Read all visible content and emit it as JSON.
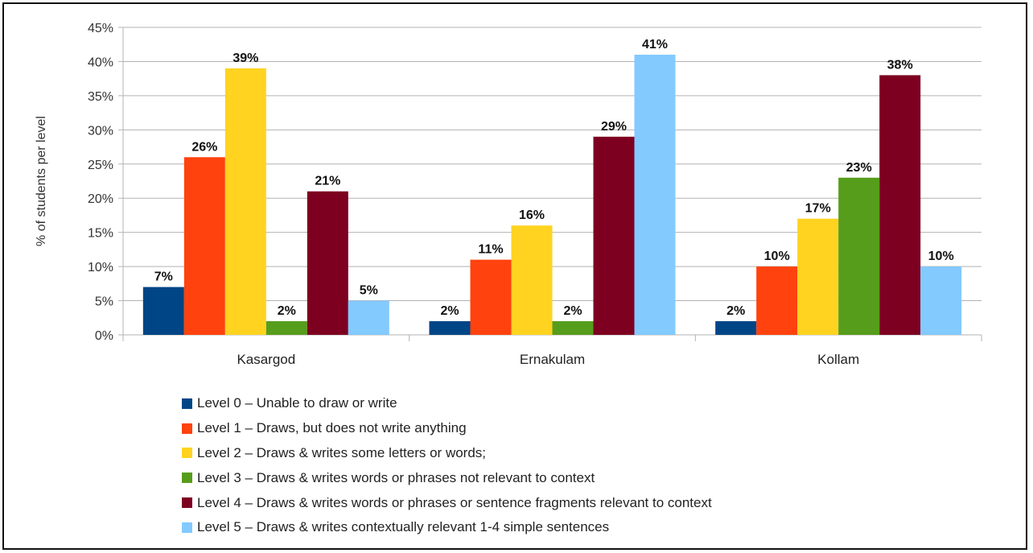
{
  "chart_data": {
    "type": "bar",
    "ylabel": "% of students per level",
    "ylim": [
      0,
      45
    ],
    "yticks": [
      "0%",
      "5%",
      "10%",
      "15%",
      "20%",
      "25%",
      "30%",
      "35%",
      "40%",
      "45%"
    ],
    "grid": true,
    "legend_position": "bottom",
    "categories": [
      "Kasargod",
      "Ernakulam",
      "Kollam"
    ],
    "series": [
      {
        "name": "Level 0 – Unable to draw or write",
        "color": "#004586",
        "values": [
          7,
          2,
          2
        ],
        "labels": [
          "7%",
          "2%",
          "2%"
        ]
      },
      {
        "name": "Level 1 – Draws, but does not write anything",
        "color": "#ff420e",
        "values": [
          26,
          11,
          10
        ],
        "labels": [
          "26%",
          "11%",
          "10%"
        ]
      },
      {
        "name": "Level 2 – Draws & writes some letters or words;",
        "color": "#ffd320",
        "values": [
          39,
          16,
          17
        ],
        "labels": [
          "39%",
          "16%",
          "17%"
        ]
      },
      {
        "name": "Level 3 – Draws & writes words or phrases not relevant to context",
        "color": "#579d1c",
        "values": [
          2,
          2,
          23
        ],
        "labels": [
          "2%",
          "2%",
          "23%"
        ]
      },
      {
        "name": "Level 4 – Draws & writes words or phrases or sentence fragments relevant to context",
        "color": "#7e0021",
        "values": [
          21,
          29,
          38
        ],
        "labels": [
          "21%",
          "29%",
          "38%"
        ]
      },
      {
        "name": "Level 5 – Draws & writes contextually relevant 1-4 simple sentences",
        "color": "#83caff",
        "values": [
          5,
          41,
          10
        ],
        "labels": [
          "5%",
          "41%",
          "10%"
        ]
      }
    ]
  }
}
